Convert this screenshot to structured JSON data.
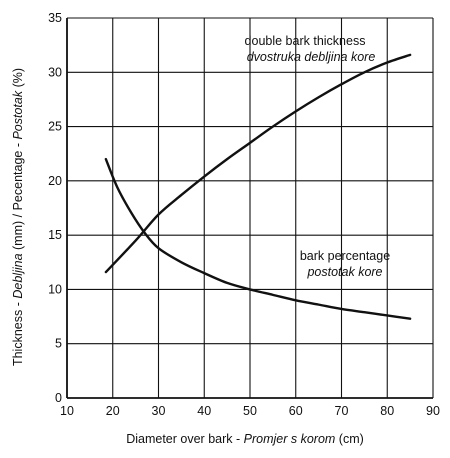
{
  "chart_data": {
    "type": "line",
    "xlabel": {
      "plain": "Diameter over bark - ",
      "italic": "Promjer s korom",
      "unit": " (cm)"
    },
    "ylabel": {
      "plain1": "Thickness - ",
      "italic1": "Debljina",
      "plain2": " (mm) / Pecentage - ",
      "italic2": "Postotak",
      "unit": " (%)"
    },
    "xlim": [
      10,
      90
    ],
    "ylim": [
      0,
      35
    ],
    "x_ticks": [
      10,
      20,
      30,
      40,
      50,
      60,
      70,
      80,
      90
    ],
    "y_ticks": [
      0,
      5,
      10,
      15,
      20,
      25,
      30,
      35
    ],
    "grid": true,
    "series": [
      {
        "name": "double bark thickness",
        "name_alt": "dvostruka debljina kore",
        "x": [
          18.5,
          25,
          30,
          35,
          40,
          45,
          50,
          55,
          60,
          65,
          70,
          75,
          80,
          85
        ],
        "y": [
          11.6,
          14.5,
          16.9,
          18.7,
          20.4,
          22.0,
          23.5,
          25.0,
          26.4,
          27.7,
          28.9,
          30.0,
          30.9,
          31.6
        ]
      },
      {
        "name": "bark percentage",
        "name_alt": "postotak kore",
        "x": [
          18.5,
          21,
          24,
          27,
          30,
          35,
          40,
          45,
          50,
          55,
          60,
          65,
          70,
          75,
          80,
          85
        ],
        "y": [
          22.0,
          19.4,
          17.1,
          15.2,
          13.8,
          12.5,
          11.5,
          10.6,
          10.0,
          9.5,
          9.0,
          8.6,
          8.2,
          7.9,
          7.6,
          7.3
        ]
      }
    ]
  }
}
